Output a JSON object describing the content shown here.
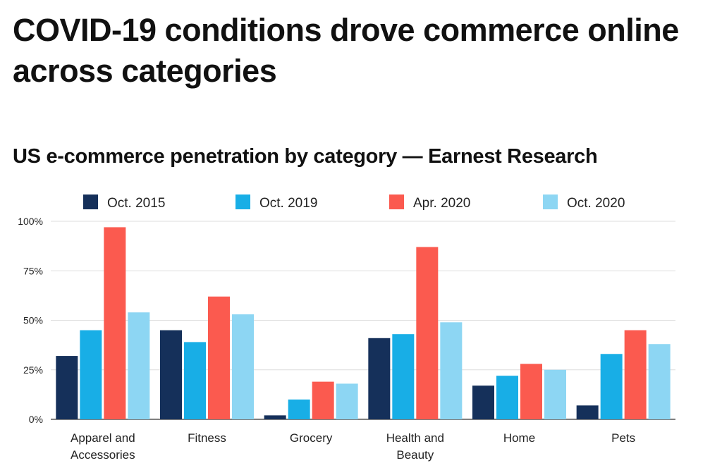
{
  "headline": "COVID-19 conditions drove commerce online across categories",
  "colors": {
    "oct_2015": "#15305a",
    "oct_2019": "#18aee6",
    "apr_2020": "#fb5a4f",
    "oct_2020": "#8dd6f3",
    "grid": "#dedede",
    "axis": "#555555"
  },
  "chart_data": {
    "type": "bar",
    "title": "US e-commerce penetration by category — Earnest Research",
    "xlabel": "",
    "ylabel": "",
    "ylim": [
      0,
      100
    ],
    "y_ticks": [
      "0%",
      "25%",
      "50%",
      "75%",
      "100%"
    ],
    "y_tick_values": [
      0,
      25,
      50,
      75,
      100
    ],
    "legend_position": "top",
    "grid": true,
    "categories": [
      [
        "Apparel and",
        "Accessories"
      ],
      [
        "Fitness"
      ],
      [
        "Grocery"
      ],
      [
        "Health and",
        "Beauty"
      ],
      [
        "Home"
      ],
      [
        "Pets"
      ]
    ],
    "series": [
      {
        "name": "Oct. 2015",
        "color_key": "oct_2015",
        "values": [
          32,
          45,
          2,
          41,
          17,
          7
        ]
      },
      {
        "name": "Oct. 2019",
        "color_key": "oct_2019",
        "values": [
          45,
          39,
          10,
          43,
          22,
          33
        ]
      },
      {
        "name": "Apr. 2020",
        "color_key": "apr_2020",
        "values": [
          97,
          62,
          19,
          87,
          28,
          45
        ]
      },
      {
        "name": "Oct. 2020",
        "color_key": "oct_2020",
        "values": [
          54,
          53,
          18,
          49,
          25,
          38
        ]
      }
    ]
  }
}
